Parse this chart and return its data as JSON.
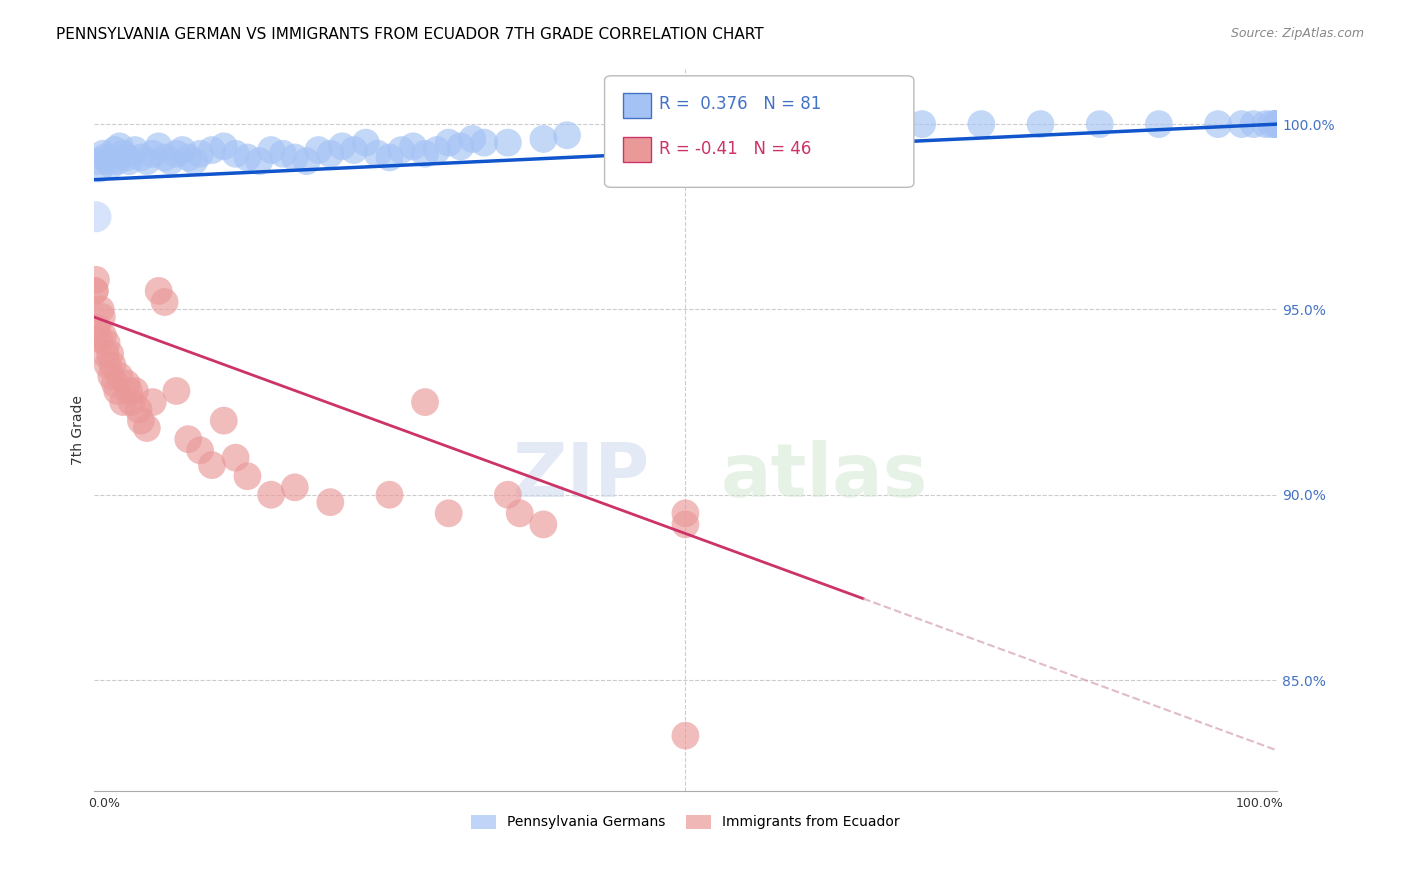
{
  "title": "PENNSYLVANIA GERMAN VS IMMIGRANTS FROM ECUADOR 7TH GRADE CORRELATION CHART",
  "source": "Source: ZipAtlas.com",
  "ylabel": "7th Grade",
  "blue_R": 0.376,
  "blue_N": 81,
  "pink_R": -0.41,
  "pink_N": 46,
  "blue_color": "#a4c2f4",
  "pink_color": "#ea9999",
  "blue_line_color": "#1155cc",
  "pink_line_color": "#cc3366",
  "blue_scatter_x": [
    0.3,
    0.5,
    0.8,
    1.0,
    1.2,
    1.5,
    1.8,
    2.0,
    2.2,
    2.5,
    2.8,
    3.0,
    3.5,
    4.0,
    4.5,
    5.0,
    5.5,
    6.0,
    6.5,
    7.0,
    7.5,
    8.0,
    8.5,
    9.0,
    10.0,
    11.0,
    12.0,
    13.0,
    14.0,
    15.0,
    16.0,
    17.0,
    18.0,
    19.0,
    20.0,
    21.0,
    22.0,
    23.0,
    24.0,
    25.0,
    26.0,
    27.0,
    28.0,
    29.0,
    30.0,
    31.0,
    32.0,
    33.0,
    35.0,
    38.0,
    40.0,
    45.0,
    50.0,
    55.0,
    60.0,
    65.0,
    70.0,
    75.0,
    80.0,
    85.0,
    90.0,
    95.0,
    97.0,
    98.0,
    99.0,
    99.5,
    100.0,
    100.0,
    100.0,
    100.0,
    100.0,
    100.0,
    100.0,
    100.0,
    100.0,
    100.0,
    100.0,
    100.0,
    100.0,
    100.0,
    100.0
  ],
  "blue_scatter_y": [
    99.0,
    98.8,
    99.2,
    99.1,
    99.0,
    98.9,
    99.3,
    99.0,
    99.4,
    99.2,
    99.1,
    99.0,
    99.3,
    99.1,
    99.0,
    99.2,
    99.4,
    99.1,
    99.0,
    99.2,
    99.3,
    99.1,
    99.0,
    99.2,
    99.3,
    99.4,
    99.2,
    99.1,
    99.0,
    99.3,
    99.2,
    99.1,
    99.0,
    99.3,
    99.2,
    99.4,
    99.3,
    99.5,
    99.2,
    99.1,
    99.3,
    99.4,
    99.2,
    99.3,
    99.5,
    99.4,
    99.6,
    99.5,
    99.5,
    99.6,
    99.7,
    99.8,
    99.8,
    99.9,
    100.0,
    100.0,
    100.0,
    100.0,
    100.0,
    100.0,
    100.0,
    100.0,
    100.0,
    100.0,
    100.0,
    100.0,
    100.0,
    100.0,
    100.0,
    100.0,
    100.0,
    100.0,
    100.0,
    100.0,
    100.0,
    100.0,
    100.0,
    100.0,
    100.0,
    100.0,
    100.0
  ],
  "blue_scatter_sizes": [
    20,
    20,
    20,
    20,
    20,
    20,
    20,
    20,
    20,
    20,
    20,
    20,
    20,
    20,
    20,
    20,
    20,
    20,
    20,
    20,
    20,
    20,
    20,
    20,
    20,
    20,
    20,
    20,
    20,
    20,
    20,
    20,
    20,
    20,
    20,
    20,
    20,
    20,
    20,
    20,
    20,
    20,
    20,
    20,
    20,
    20,
    20,
    20,
    20,
    20,
    20,
    20,
    20,
    20,
    20,
    20,
    20,
    20,
    20,
    20,
    20,
    20,
    20,
    20,
    20,
    20,
    20,
    20,
    20,
    20,
    20,
    20,
    20,
    20,
    20,
    20,
    20,
    20,
    20,
    20,
    20
  ],
  "blue_big_x": [
    0.2
  ],
  "blue_big_y": [
    97.5
  ],
  "blue_big_size": [
    500
  ],
  "pink_scatter_x": [
    0.1,
    0.2,
    0.3,
    0.5,
    0.6,
    0.7,
    0.8,
    1.0,
    1.1,
    1.2,
    1.4,
    1.5,
    1.6,
    1.8,
    2.0,
    2.2,
    2.5,
    2.8,
    3.0,
    3.2,
    3.5,
    3.8,
    4.0,
    4.5,
    5.0,
    5.5,
    6.0,
    7.0,
    8.0,
    9.0,
    10.0,
    11.0,
    12.0,
    13.0,
    15.0,
    17.0,
    20.0,
    25.0,
    28.0,
    30.0,
    35.0,
    36.0,
    38.0,
    50.0,
    50.0,
    50.0
  ],
  "pink_scatter_y": [
    95.5,
    95.8,
    94.5,
    94.2,
    95.0,
    94.8,
    94.3,
    93.8,
    94.1,
    93.5,
    93.8,
    93.2,
    93.5,
    93.0,
    92.8,
    93.2,
    92.5,
    93.0,
    92.8,
    92.5,
    92.8,
    92.3,
    92.0,
    91.8,
    92.5,
    95.5,
    95.2,
    92.8,
    91.5,
    91.2,
    90.8,
    92.0,
    91.0,
    90.5,
    90.0,
    90.2,
    89.8,
    90.0,
    92.5,
    89.5,
    90.0,
    89.5,
    89.2,
    89.5,
    89.2,
    83.5
  ],
  "pink_scatter_sizes": [
    20,
    20,
    20,
    20,
    20,
    20,
    20,
    20,
    20,
    20,
    20,
    20,
    20,
    20,
    20,
    20,
    20,
    20,
    20,
    20,
    20,
    20,
    20,
    20,
    20,
    20,
    20,
    20,
    20,
    20,
    20,
    20,
    20,
    20,
    20,
    20,
    20,
    20,
    20,
    20,
    20,
    20,
    20,
    20,
    20,
    20
  ],
  "pink_big_x": [
    0.1
  ],
  "pink_big_y": [
    95.5
  ],
  "pink_big_size": [
    400
  ],
  "blue_line_x0": 0,
  "blue_line_x1": 100,
  "blue_line_y0": 98.5,
  "blue_line_y1": 100.0,
  "pink_solid_x0": 0,
  "pink_solid_x1": 65,
  "pink_solid_y0": 94.8,
  "pink_solid_y1": 87.2,
  "pink_dash_x0": 65,
  "pink_dash_x1": 100,
  "pink_dash_y0": 87.2,
  "pink_dash_y1": 83.1,
  "xlim": [
    0,
    100
  ],
  "ylim": [
    82.0,
    101.5
  ],
  "ytick_lines": [
    100.0,
    95.0,
    90.0,
    85.0
  ],
  "right_ytick_labels": [
    "100.0%",
    "95.0%",
    "90.0%",
    "85.0%"
  ],
  "watermark_zip": "ZIP",
  "watermark_atlas": "atlas",
  "legend_labels": [
    "Pennsylvania Germans",
    "Immigrants from Ecuador"
  ],
  "title_fontsize": 11,
  "source_fontsize": 9
}
